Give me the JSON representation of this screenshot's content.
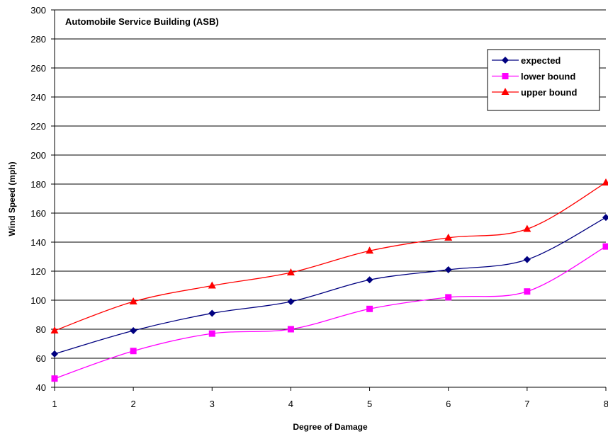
{
  "chart_data": {
    "type": "line",
    "title": "Automobile Service Building (ASB)",
    "xlabel": "Degree of Damage",
    "ylabel": "Wind Speed (mph)",
    "x": [
      1,
      2,
      3,
      4,
      5,
      6,
      7,
      8
    ],
    "xlim": [
      1,
      8
    ],
    "ylim": [
      40,
      300
    ],
    "x_ticks": [
      "1",
      "2",
      "3",
      "4",
      "5",
      "6",
      "7",
      "8"
    ],
    "y_ticks": [
      "40",
      "60",
      "80",
      "100",
      "120",
      "140",
      "160",
      "180",
      "200",
      "220",
      "240",
      "260",
      "280",
      "300"
    ],
    "grid": "horizontal",
    "legend_position": "top-right",
    "series": [
      {
        "name": "expected",
        "color": "#000080",
        "marker": "diamond",
        "values": [
          63,
          79,
          91,
          99,
          114,
          121,
          128,
          157
        ]
      },
      {
        "name": "lower bound",
        "color": "#FF00FF",
        "marker": "square",
        "values": [
          46,
          65,
          77,
          80,
          94,
          102,
          106,
          137
        ]
      },
      {
        "name": "upper bound",
        "color": "#FF0000",
        "marker": "triangle",
        "values": [
          79,
          99,
          110,
          119,
          134,
          143,
          149,
          181
        ]
      }
    ]
  }
}
